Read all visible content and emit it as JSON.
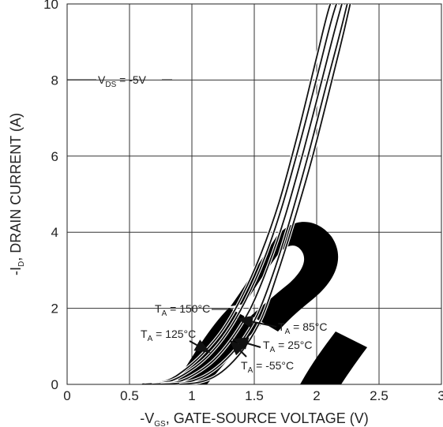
{
  "chart_data": {
    "type": "line",
    "title": "",
    "xlabel": {
      "prefix": "-V",
      "sub": "GS",
      "rest": ", GATE-SOURCE VOLTAGE (V)"
    },
    "ylabel": {
      "prefix": "-I",
      "sub": "D",
      "rest": ", DRAIN CURRENT (A)"
    },
    "xlim": [
      0,
      3
    ],
    "ylim": [
      0,
      10
    ],
    "x_ticks": [
      "0",
      "0.5",
      "1",
      "1.5",
      "2",
      "2.5",
      "3"
    ],
    "y_ticks": [
      "0",
      "2",
      "4",
      "6",
      "8",
      "10"
    ],
    "grid": true,
    "watermark": "DIODES",
    "condition": {
      "prefix": "V",
      "sub": "DS",
      "rest": " = -5V"
    },
    "series": [
      {
        "name": {
          "prefix": "T",
          "sub": "A",
          "rest": " = 150°C"
        },
        "x": [
          0.6,
          0.8,
          0.95,
          1.1,
          1.25,
          1.4,
          1.55,
          1.7,
          1.85,
          2.0,
          2.1,
          2.2
        ],
        "y": [
          0.0,
          0.1,
          0.4,
          0.85,
          1.45,
          2.3,
          3.4,
          4.8,
          6.6,
          8.6,
          9.9,
          10.8
        ]
      },
      {
        "name": {
          "prefix": "T",
          "sub": "A",
          "rest": " = 125°C"
        },
        "x": [
          0.62,
          0.82,
          0.98,
          1.13,
          1.28,
          1.43,
          1.58,
          1.72,
          1.87,
          2.02,
          2.13,
          2.25
        ],
        "y": [
          0.0,
          0.08,
          0.35,
          0.75,
          1.35,
          2.2,
          3.3,
          4.65,
          6.4,
          8.3,
          9.7,
          10.9
        ]
      },
      {
        "name": {
          "prefix": "T",
          "sub": "A",
          "rest": " = 85°C"
        },
        "x": [
          0.68,
          0.88,
          1.03,
          1.18,
          1.32,
          1.47,
          1.61,
          1.75,
          1.9,
          2.05,
          2.16,
          2.28
        ],
        "y": [
          0.0,
          0.06,
          0.28,
          0.65,
          1.2,
          2.0,
          3.1,
          4.45,
          6.2,
          8.1,
          9.5,
          10.9
        ]
      },
      {
        "name": {
          "prefix": "T",
          "sub": "A",
          "rest": " = 25°C"
        },
        "x": [
          0.75,
          0.95,
          1.1,
          1.24,
          1.38,
          1.52,
          1.65,
          1.78,
          1.93,
          2.08,
          2.2,
          2.31
        ],
        "y": [
          0.0,
          0.05,
          0.22,
          0.55,
          1.05,
          1.8,
          2.9,
          4.25,
          6.0,
          7.9,
          9.4,
          10.9
        ]
      },
      {
        "name": {
          "prefix": "T",
          "sub": "A",
          "rest": " = -55°C"
        },
        "x": [
          0.9,
          1.05,
          1.18,
          1.3,
          1.43,
          1.56,
          1.68,
          1.81,
          1.96,
          2.1,
          2.22,
          2.33
        ],
        "y": [
          0.0,
          0.05,
          0.2,
          0.5,
          1.0,
          1.75,
          2.85,
          4.2,
          5.9,
          7.7,
          9.3,
          10.9
        ]
      }
    ]
  }
}
